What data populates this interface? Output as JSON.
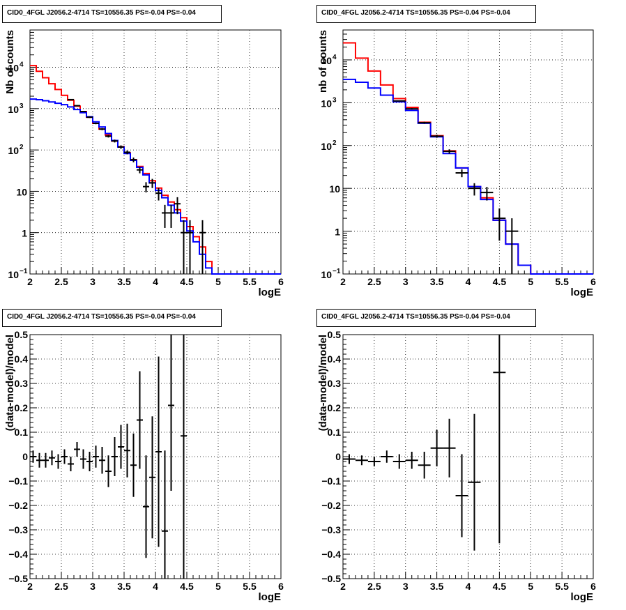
{
  "chart_data": [
    {
      "type": "line",
      "title": "CID0_4FGL J2056.2-4714 TS=10556.35 PS=-0.04 PS=-0.04",
      "xlabel": "logE",
      "ylabel": "Nb of counts",
      "xlim": [
        2,
        6
      ],
      "ylim": [
        0.1,
        80000
      ],
      "log_y": true,
      "grid": true,
      "x_ticks": [
        "2",
        "2.5",
        "3",
        "3.5",
        "4",
        "4.5",
        "5",
        "5.5",
        "6"
      ],
      "y_ticks": [
        {
          "v": 0.1,
          "label": "10",
          "sup": "−1"
        },
        {
          "v": 1,
          "label": "1",
          "sup": ""
        },
        {
          "v": 10,
          "label": "10",
          "sup": ""
        },
        {
          "v": 100,
          "label": "10",
          "sup": "2"
        },
        {
          "v": 1000,
          "label": "10",
          "sup": "3"
        },
        {
          "v": 10000,
          "label": "10",
          "sup": "4"
        }
      ],
      "bin_edges": [
        2.0,
        2.1,
        2.2,
        2.3,
        2.4,
        2.5,
        2.6,
        2.7,
        2.8,
        2.9,
        3.0,
        3.1,
        3.2,
        3.3,
        3.4,
        3.5,
        3.6,
        3.7,
        3.8,
        3.9,
        4.0,
        4.1,
        4.2,
        4.3,
        4.4,
        4.5,
        4.6,
        4.7,
        4.8,
        4.9,
        5.0,
        5.1,
        5.2,
        5.3,
        5.4,
        5.5,
        5.6,
        5.7,
        5.8,
        5.9,
        6.0
      ],
      "series": [
        {
          "color": "#ff0000",
          "values": [
            11000,
            8000,
            5600,
            4000,
            2900,
            2100,
            1600,
            1150,
            850,
            620,
            440,
            320,
            230,
            165,
            120,
            85,
            58,
            40,
            27,
            18,
            12,
            8,
            5.5,
            3.6,
            2.3,
            1.4,
            0.8,
            0.45,
            0.2,
            0.1,
            0.1,
            0.1,
            0.1,
            0.1,
            0.1,
            0.1,
            0.1,
            0.1,
            0.1,
            0.1
          ]
        },
        {
          "color": "#0000ff",
          "values": [
            1700,
            1650,
            1550,
            1450,
            1350,
            1250,
            1100,
            950,
            800,
            640,
            480,
            360,
            250,
            170,
            118,
            82,
            56,
            38,
            25,
            16,
            10.5,
            7,
            4.6,
            3,
            1.9,
            1.1,
            0.6,
            0.3,
            0.14,
            0.1,
            0.1,
            0.1,
            0.1,
            0.1,
            0.1,
            0.1,
            0.1,
            0.1,
            0.1,
            0.1
          ]
        }
      ],
      "data_points": [
        {
          "x": 2.65,
          "y": 1650,
          "e": 41
        },
        {
          "x": 2.75,
          "y": 1180,
          "e": 34
        },
        {
          "x": 2.85,
          "y": 850,
          "e": 29
        },
        {
          "x": 2.95,
          "y": 620,
          "e": 25
        },
        {
          "x": 3.05,
          "y": 440,
          "e": 21
        },
        {
          "x": 3.15,
          "y": 320,
          "e": 18
        },
        {
          "x": 3.25,
          "y": 215,
          "e": 15
        },
        {
          "x": 3.35,
          "y": 165,
          "e": 13
        },
        {
          "x": 3.45,
          "y": 118,
          "e": 11
        },
        {
          "x": 3.55,
          "y": 88,
          "e": 9.4
        },
        {
          "x": 3.65,
          "y": 58,
          "e": 7.6
        },
        {
          "x": 3.75,
          "y": 33,
          "e": 5.7
        },
        {
          "x": 3.85,
          "y": 13,
          "e": 3.6
        },
        {
          "x": 3.95,
          "y": 16,
          "e": 4
        },
        {
          "x": 4.05,
          "y": 9,
          "e": 3
        },
        {
          "x": 4.15,
          "y": 3,
          "e": 1.7
        },
        {
          "x": 4.25,
          "y": 3,
          "e": 1.7
        },
        {
          "x": 4.35,
          "y": 5,
          "e": 2.2
        },
        {
          "x": 4.45,
          "y": 1,
          "e": 1
        },
        {
          "x": 4.55,
          "y": 1,
          "e": 1
        },
        {
          "x": 4.75,
          "y": 1,
          "e": 1
        }
      ]
    },
    {
      "type": "line",
      "title": "CID0_4FGL J2056.2-4714 TS=10556.35 PS=-0.04 PS=-0.04",
      "xlabel": "logE",
      "ylabel": "nb of counts",
      "xlim": [
        2,
        6
      ],
      "ylim": [
        0.1,
        50000
      ],
      "log_y": true,
      "grid": true,
      "x_ticks": [
        "2",
        "2.5",
        "3",
        "3.5",
        "4",
        "4.5",
        "5",
        "5.5",
        "6"
      ],
      "y_ticks": [
        {
          "v": 0.1,
          "label": "10",
          "sup": "−1"
        },
        {
          "v": 1,
          "label": "1",
          "sup": ""
        },
        {
          "v": 10,
          "label": "10",
          "sup": ""
        },
        {
          "v": 100,
          "label": "10",
          "sup": "2"
        },
        {
          "v": 1000,
          "label": "10",
          "sup": "3"
        },
        {
          "v": 10000,
          "label": "10",
          "sup": "4"
        }
      ],
      "bin_edges": [
        2.0,
        2.2,
        2.4,
        2.6,
        2.8,
        3.0,
        3.2,
        3.4,
        3.6,
        3.8,
        4.0,
        4.2,
        4.4,
        4.6,
        4.8,
        5.0,
        5.2,
        5.4,
        5.6,
        5.8,
        6.0
      ],
      "series": [
        {
          "color": "#ff0000",
          "values": [
            25000,
            11000,
            5500,
            2600,
            1250,
            780,
            350,
            170,
            75,
            30,
            11,
            6,
            1.8,
            0.5,
            0.16,
            0.1,
            0.1,
            0.1,
            0.1,
            0.1
          ]
        },
        {
          "color": "#0000ff",
          "values": [
            3500,
            3000,
            2200,
            1500,
            1050,
            660,
            330,
            160,
            65,
            30,
            11,
            5.5,
            1.8,
            0.5,
            0.16,
            0.1,
            0.1,
            0.1,
            0.1,
            0.1
          ]
        }
      ],
      "data_points": [
        {
          "x": 2.9,
          "y": 1100,
          "e": 33
        },
        {
          "x": 3.1,
          "y": 720,
          "e": 27
        },
        {
          "x": 3.3,
          "y": 340,
          "e": 18
        },
        {
          "x": 3.5,
          "y": 165,
          "e": 13
        },
        {
          "x": 3.7,
          "y": 73,
          "e": 8.5
        },
        {
          "x": 3.9,
          "y": 23,
          "e": 4.8
        },
        {
          "x": 4.1,
          "y": 10,
          "e": 3.2
        },
        {
          "x": 4.3,
          "y": 8,
          "e": 2.8
        },
        {
          "x": 4.5,
          "y": 2,
          "e": 1.4
        },
        {
          "x": 4.7,
          "y": 1,
          "e": 1
        }
      ]
    },
    {
      "type": "scatter",
      "title": "CID0_4FGL J2056.2-4714 TS=10556.35 PS=-0.04 PS=-0.04",
      "xlabel": "logE",
      "ylabel": "(data-model)/model",
      "xlim": [
        2,
        6
      ],
      "ylim": [
        -0.5,
        0.5
      ],
      "log_y": false,
      "grid": true,
      "x_ticks": [
        "2",
        "2.5",
        "3",
        "3.5",
        "4",
        "4.5",
        "5",
        "5.5",
        "6"
      ],
      "y_ticks": [
        "−0.5",
        "−0.4",
        "−0.3",
        "−0.2",
        "−0.1",
        "0",
        "0.1",
        "0.2",
        "0.3",
        "0.4",
        "0.5"
      ],
      "points": [
        {
          "x": 2.05,
          "y": 0.0,
          "xe": 0.05,
          "ye": 0.025
        },
        {
          "x": 2.15,
          "y": -0.015,
          "xe": 0.05,
          "ye": 0.03
        },
        {
          "x": 2.25,
          "y": -0.015,
          "xe": 0.05,
          "ye": 0.03
        },
        {
          "x": 2.35,
          "y": -0.005,
          "xe": 0.05,
          "ye": 0.03
        },
        {
          "x": 2.45,
          "y": -0.02,
          "xe": 0.05,
          "ye": 0.03
        },
        {
          "x": 2.55,
          "y": 0.0,
          "xe": 0.05,
          "ye": 0.03
        },
        {
          "x": 2.65,
          "y": -0.03,
          "xe": 0.05,
          "ye": 0.03
        },
        {
          "x": 2.75,
          "y": 0.03,
          "xe": 0.05,
          "ye": 0.03
        },
        {
          "x": 2.85,
          "y": -0.01,
          "xe": 0.05,
          "ye": 0.04
        },
        {
          "x": 2.95,
          "y": -0.02,
          "xe": 0.05,
          "ye": 0.04
        },
        {
          "x": 3.05,
          "y": 0.0,
          "xe": 0.05,
          "ye": 0.045
        },
        {
          "x": 3.15,
          "y": -0.015,
          "xe": 0.05,
          "ye": 0.055
        },
        {
          "x": 3.25,
          "y": -0.06,
          "xe": 0.05,
          "ye": 0.065
        },
        {
          "x": 3.35,
          "y": 0.0,
          "xe": 0.05,
          "ye": 0.08
        },
        {
          "x": 3.45,
          "y": 0.04,
          "xe": 0.05,
          "ye": 0.09
        },
        {
          "x": 3.55,
          "y": 0.025,
          "xe": 0.05,
          "ye": 0.11
        },
        {
          "x": 3.65,
          "y": -0.035,
          "xe": 0.05,
          "ye": 0.13
        },
        {
          "x": 3.75,
          "y": 0.15,
          "xe": 0.05,
          "ye": 0.2
        },
        {
          "x": 3.85,
          "y": -0.205,
          "xe": 0.05,
          "ye": 0.21
        },
        {
          "x": 3.95,
          "y": -0.085,
          "xe": 0.05,
          "ye": 0.25
        },
        {
          "x": 4.05,
          "y": 0.02,
          "xe": 0.05,
          "ye": 0.39
        },
        {
          "x": 4.15,
          "y": -0.305,
          "xe": 0.05,
          "ye": 0.33
        },
        {
          "x": 4.25,
          "y": 0.21,
          "xe": 0.05,
          "ye": 0.35
        },
        {
          "x": 4.45,
          "y": 0.085,
          "xe": 0.05,
          "ye": 0.7
        }
      ]
    },
    {
      "type": "scatter",
      "title": "CID0_4FGL J2056.2-4714 TS=10556.35 PS=-0.04 PS=-0.04",
      "xlabel": "logE",
      "ylabel": "(data-model)/model",
      "xlim": [
        2,
        6
      ],
      "ylim": [
        -0.5,
        0.5
      ],
      "log_y": false,
      "grid": true,
      "x_ticks": [
        "2",
        "2.5",
        "3",
        "3.5",
        "4",
        "4.5",
        "5",
        "5.5",
        "6"
      ],
      "y_ticks": [
        "−0.5",
        "−0.4",
        "−0.3",
        "−0.2",
        "−0.1",
        "0",
        "0.1",
        "0.2",
        "0.3",
        "0.4",
        "0.5"
      ],
      "points": [
        {
          "x": 2.1,
          "y": -0.01,
          "xe": 0.1,
          "ye": 0.02
        },
        {
          "x": 2.3,
          "y": -0.015,
          "xe": 0.1,
          "ye": 0.02
        },
        {
          "x": 2.5,
          "y": -0.02,
          "xe": 0.1,
          "ye": 0.02
        },
        {
          "x": 2.7,
          "y": 0.0,
          "xe": 0.1,
          "ye": 0.025
        },
        {
          "x": 2.9,
          "y": -0.02,
          "xe": 0.1,
          "ye": 0.03
        },
        {
          "x": 3.1,
          "y": -0.015,
          "xe": 0.1,
          "ye": 0.035
        },
        {
          "x": 3.3,
          "y": -0.035,
          "xe": 0.1,
          "ye": 0.055
        },
        {
          "x": 3.5,
          "y": 0.035,
          "xe": 0.1,
          "ye": 0.075
        },
        {
          "x": 3.7,
          "y": 0.035,
          "xe": 0.1,
          "ye": 0.12
        },
        {
          "x": 3.9,
          "y": -0.16,
          "xe": 0.1,
          "ye": 0.17
        },
        {
          "x": 4.1,
          "y": -0.105,
          "xe": 0.1,
          "ye": 0.28
        },
        {
          "x": 4.5,
          "y": 0.345,
          "xe": 0.1,
          "ye": 0.7
        }
      ]
    }
  ]
}
